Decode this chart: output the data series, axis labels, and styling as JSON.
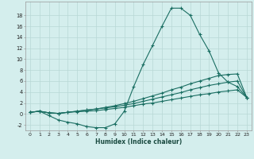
{
  "xlabel": "Humidex (Indice chaleur)",
  "bg_color": "#d4eeed",
  "grid_color": "#b8d8d5",
  "line_color": "#1a6e62",
  "xlim": [
    -0.5,
    23.5
  ],
  "ylim": [
    -3.0,
    20.5
  ],
  "yticks": [
    -2,
    0,
    2,
    4,
    6,
    8,
    10,
    12,
    14,
    16,
    18
  ],
  "xticks": [
    0,
    1,
    2,
    3,
    4,
    5,
    6,
    7,
    8,
    9,
    10,
    11,
    12,
    13,
    14,
    15,
    16,
    17,
    18,
    19,
    20,
    21,
    22,
    23
  ],
  "series": [
    {
      "x": [
        0,
        1,
        2,
        3,
        4,
        5,
        6,
        7,
        8,
        9,
        10,
        11,
        12,
        13,
        14,
        15,
        16,
        17,
        18,
        19,
        20,
        21,
        22,
        23
      ],
      "y": [
        0.3,
        0.5,
        -0.3,
        -1.1,
        -1.5,
        -1.8,
        -2.3,
        -2.5,
        -2.5,
        -1.8,
        0.5,
        5.0,
        9.0,
        12.5,
        16.0,
        19.3,
        19.3,
        18.0,
        14.5,
        11.5,
        7.5,
        5.8,
        5.0,
        3.0
      ]
    },
    {
      "x": [
        0,
        1,
        2,
        3,
        4,
        5,
        6,
        7,
        8,
        9,
        10,
        11,
        12,
        13,
        14,
        15,
        16,
        17,
        18,
        19,
        20,
        21,
        22,
        23
      ],
      "y": [
        0.3,
        0.5,
        0.2,
        0.1,
        0.3,
        0.5,
        0.7,
        0.9,
        1.2,
        1.5,
        1.9,
        2.3,
        2.8,
        3.3,
        3.8,
        4.4,
        4.9,
        5.5,
        6.0,
        6.5,
        7.0,
        7.2,
        7.3,
        3.0
      ]
    },
    {
      "x": [
        0,
        1,
        2,
        3,
        4,
        5,
        6,
        7,
        8,
        9,
        10,
        11,
        12,
        13,
        14,
        15,
        16,
        17,
        18,
        19,
        20,
        21,
        22,
        23
      ],
      "y": [
        0.3,
        0.5,
        0.2,
        0.1,
        0.3,
        0.5,
        0.7,
        0.9,
        1.1,
        1.3,
        1.6,
        1.9,
        2.3,
        2.7,
        3.1,
        3.5,
        3.9,
        4.4,
        4.8,
        5.2,
        5.5,
        5.8,
        6.0,
        3.0
      ]
    },
    {
      "x": [
        0,
        1,
        2,
        3,
        4,
        5,
        6,
        7,
        8,
        9,
        10,
        11,
        12,
        13,
        14,
        15,
        16,
        17,
        18,
        19,
        20,
        21,
        22,
        23
      ],
      "y": [
        0.3,
        0.5,
        0.2,
        0.1,
        0.3,
        0.4,
        0.5,
        0.6,
        0.8,
        1.0,
        1.2,
        1.5,
        1.8,
        2.0,
        2.3,
        2.6,
        2.9,
        3.2,
        3.5,
        3.7,
        4.0,
        4.2,
        4.4,
        3.0
      ]
    }
  ]
}
